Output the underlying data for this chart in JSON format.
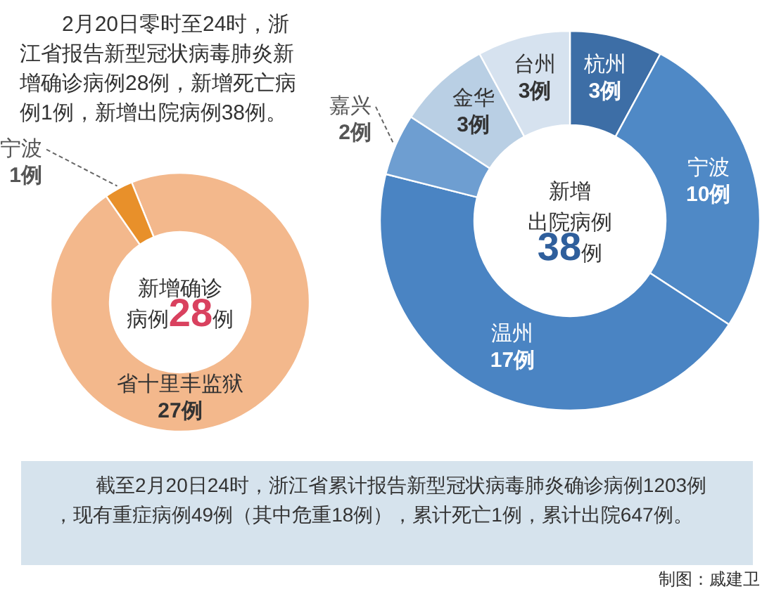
{
  "chart_data": [
    {
      "type": "donut",
      "title": "新增确诊病例28例",
      "categories": [
        "省十里丰监狱",
        "宁波"
      ],
      "values": [
        27,
        1
      ],
      "colors": [
        "#f3b88c",
        "#e8902a"
      ],
      "value_labels": [
        "27例",
        "1例"
      ],
      "annotations": [
        "2月20日零时至24时，浙江省报告新型冠状病毒肺炎新增确诊病例28例，新增死亡病例1例，新增出院病例38例。"
      ]
    },
    {
      "type": "donut",
      "title": "新增出院病例38例",
      "categories": [
        "杭州",
        "宁波",
        "温州",
        "嘉兴",
        "金华",
        "台州"
      ],
      "values": [
        3,
        10,
        17,
        2,
        3,
        3
      ],
      "colors": [
        "#3d6ea6",
        "#4f89c6",
        "#4a84c3",
        "#6e9ed1",
        "#b9cfe4",
        "#d6e2ef"
      ],
      "value_labels": [
        "3例",
        "10例",
        "17例",
        "2例",
        "3例",
        "3例"
      ],
      "annotations": [
        "截至2月20日24时，浙江省累计报告新型冠状病毒肺炎确诊病例1203例，现有重症病例49例（其中危重18例），累计死亡1例，累计出院647例。",
        "制图：戚建卫"
      ]
    }
  ]
}
